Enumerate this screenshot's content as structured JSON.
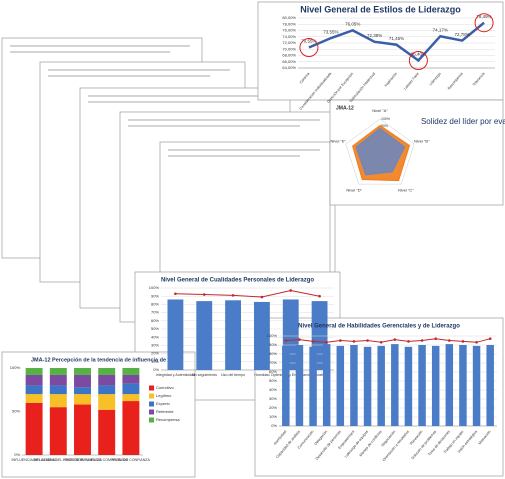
{
  "chart_data": [
    {
      "type": "line",
      "title": "Nivel General  de Estilos de Liderazgo",
      "categories": [
        "Carisma",
        "Consideración Individualizada",
        "Dirección por Excepción",
        "Estimulación Intelectual",
        "Inspiración",
        "Laissez Faire",
        "Liderazgo",
        "Recompensa",
        "Tolerancia"
      ],
      "values": [
        70.55,
        73.55,
        76.05,
        72.38,
        71.45,
        66.4,
        74.17,
        72.78,
        78.49
      ],
      "value_labels": [
        "70,55%",
        "73,55%",
        "76,05%",
        "72,38%",
        "71,45%",
        "66,40%",
        "74,17%",
        "72,78%",
        "78,49%"
      ],
      "color": "#3b5ea8",
      "highlight": [
        0,
        5,
        8
      ],
      "ylim": [
        64,
        80
      ],
      "yticks": [
        {
          "value": 64,
          "label": "64,00%"
        },
        {
          "value": 66,
          "label": "66,00%"
        },
        {
          "value": 68,
          "label": "68,00%"
        },
        {
          "value": 70,
          "label": "70,00%"
        },
        {
          "value": 72,
          "label": "72,00%"
        },
        {
          "value": 74,
          "label": "74,00%"
        },
        {
          "value": 76,
          "label": "76,00%"
        },
        {
          "value": 78,
          "label": "78,00%"
        },
        {
          "value": 80,
          "label": "80,00%"
        }
      ],
      "grid": true
    },
    {
      "type": "radar",
      "title": "Solidez del líder por evaluador",
      "subtitle": "JMA-12",
      "categories": [
        "Nivel \"A\"",
        "Nivel \"B\"",
        "Nivel \"C\"",
        "Nivel \"D\"",
        "Nivel \"E\""
      ],
      "series": [
        {
          "color": "#f07d1b",
          "values": [
            82,
            86,
            88,
            84,
            80
          ]
        },
        {
          "color": "#6f86bd",
          "values": [
            74,
            72,
            58,
            68,
            70
          ]
        }
      ],
      "rlim": [
        0,
        100
      ],
      "rticks": [
        {
          "value": 20,
          "label": "20%"
        },
        {
          "value": 40,
          "label": "40%"
        },
        {
          "value": 60,
          "label": "60%"
        },
        {
          "value": 80,
          "label": "80%"
        },
        {
          "value": 100,
          "label": "100%"
        }
      ]
    },
    {
      "type": "bar",
      "title": "Nivel General  de Cualidades  Personales de Liderazgo",
      "categories": [
        "Integridad y Autenticidad",
        "Sin seguimiento",
        "Uso del tiempo",
        "Humildad",
        "Optimismo y Entusiasmo",
        "Iniciativa"
      ],
      "series": [
        {
          "kind": "bar",
          "color": "#4a7cc7",
          "values": [
            86,
            84,
            85,
            83,
            86,
            84
          ]
        },
        {
          "kind": "line",
          "color": "#c0282d",
          "values": [
            93,
            92,
            91,
            89,
            97,
            90
          ]
        }
      ],
      "ylim": [
        0,
        100
      ],
      "yticks": [
        {
          "value": 0,
          "label": "0%"
        },
        {
          "value": 10,
          "label": "10%"
        },
        {
          "value": 20,
          "label": "20%"
        },
        {
          "value": 30,
          "label": "30%"
        },
        {
          "value": 40,
          "label": "40%"
        },
        {
          "value": 50,
          "label": "50%"
        },
        {
          "value": 60,
          "label": "60%"
        },
        {
          "value": 70,
          "label": "70%"
        },
        {
          "value": 80,
          "label": "80%"
        },
        {
          "value": 90,
          "label": "90%"
        },
        {
          "value": 100,
          "label": "100%"
        }
      ],
      "grid": true
    },
    {
      "type": "bar",
      "title": "Nivel General  de Habilidades Gerenciales y de Liderazgo",
      "categories": [
        "Asertividad",
        "Capacidad de análisis",
        "Comunicación",
        "Delegación",
        "Desarrollo de personas",
        "Empowerment",
        "Liderazgo de equipos",
        "Manejo de conflictos",
        "Negociación",
        "Orientación a resultados",
        "Planeación",
        "Solución de problemas",
        "Toma de decisiones",
        "Trabajo en equipo",
        "Visión estratégica",
        "Motivación"
      ],
      "series": [
        {
          "kind": "bar",
          "color": "#4a7cc7",
          "values": [
            89,
            90,
            88,
            91,
            89,
            90,
            88,
            89,
            91,
            88,
            90,
            89,
            91,
            90,
            89,
            90
          ]
        },
        {
          "kind": "line",
          "color": "#c0282d",
          "values": [
            95,
            96,
            94,
            93,
            95,
            94,
            95,
            93,
            96,
            94,
            95,
            97,
            95,
            94,
            93,
            97
          ]
        }
      ],
      "ylim": [
        0,
        100
      ],
      "yticks": [
        {
          "value": 0,
          "label": "0%"
        },
        {
          "value": 10,
          "label": "10%"
        },
        {
          "value": 20,
          "label": "20%"
        },
        {
          "value": 30,
          "label": "30%"
        },
        {
          "value": 40,
          "label": "40%"
        },
        {
          "value": 50,
          "label": "50%"
        },
        {
          "value": 60,
          "label": "60%"
        },
        {
          "value": 70,
          "label": "70%"
        },
        {
          "value": 80,
          "label": "80%"
        },
        {
          "value": 90,
          "label": "90%"
        },
        {
          "value": 100,
          "label": "100%"
        }
      ],
      "grid": true
    },
    {
      "type": "stacked_bar",
      "title": "JMA-12  Percepción de la tendencia de influencia de",
      "categories": [
        "INFLUENCIA DEL ALUMNO",
        "INFLUENCIA DEL PROFESOR",
        "NIVEL DE INFLUENCIA",
        "NIVEL DE COMPROMISO",
        "NIVEL DE CONFIANZA"
      ],
      "series": [
        {
          "name": "Coercitivo",
          "color": "#e8211d",
          "values": [
            60,
            55,
            58,
            52,
            62
          ]
        },
        {
          "name": "Legítimo",
          "color": "#f6c026",
          "values": [
            10,
            15,
            12,
            18,
            8
          ]
        },
        {
          "name": "Experto",
          "color": "#3d74c6",
          "values": [
            10,
            10,
            8,
            10,
            12
          ]
        },
        {
          "name": "Referente",
          "color": "#7c4aa0",
          "values": [
            12,
            12,
            14,
            12,
            10
          ]
        },
        {
          "name": "Recompensa",
          "color": "#57b146",
          "values": [
            8,
            8,
            8,
            8,
            8
          ]
        }
      ],
      "ylim": [
        0,
        100
      ],
      "yticks": [
        {
          "value": 0,
          "label": "0%"
        },
        {
          "value": 50,
          "label": "50%"
        },
        {
          "value": 100,
          "label": "100%"
        }
      ]
    }
  ]
}
